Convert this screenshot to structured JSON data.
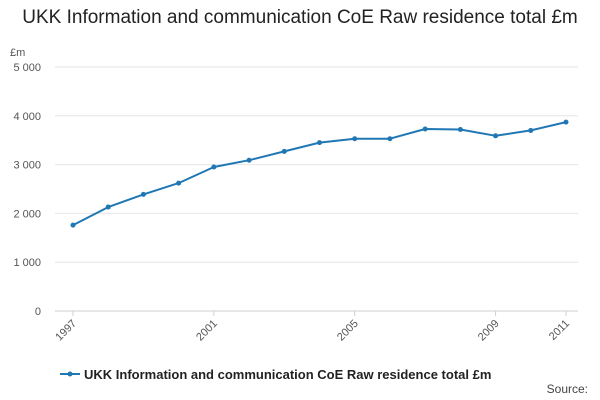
{
  "chart_data": {
    "type": "line",
    "title": "UKK Information and communication CoE Raw residence total £m",
    "ylabel": "£m",
    "xlabel": "",
    "ylim": [
      0,
      5000
    ],
    "yticks": [
      {
        "value": 0,
        "label": "0"
      },
      {
        "value": 1000,
        "label": "1 000"
      },
      {
        "value": 2000,
        "label": "2 000"
      },
      {
        "value": 3000,
        "label": "3 000"
      },
      {
        "value": 4000,
        "label": "4 000"
      },
      {
        "value": 5000,
        "label": "5 000"
      }
    ],
    "xlim": [
      1997,
      2011
    ],
    "xticks": [
      1997,
      2001,
      2005,
      2009,
      2011
    ],
    "grid": true,
    "legend_position": "bottom",
    "series": [
      {
        "name": "UKK Information and communication CoE Raw residence total £m",
        "color": "#1f77b4",
        "x": [
          1997,
          1998,
          1999,
          2000,
          2001,
          2002,
          2003,
          2004,
          2005,
          2006,
          2007,
          2008,
          2009,
          2010,
          2011
        ],
        "values": [
          1760,
          2130,
          2390,
          2620,
          2950,
          3090,
          3270,
          3450,
          3530,
          3530,
          3730,
          3720,
          3590,
          3700,
          3870
        ]
      }
    ]
  },
  "source_label": "Source:"
}
